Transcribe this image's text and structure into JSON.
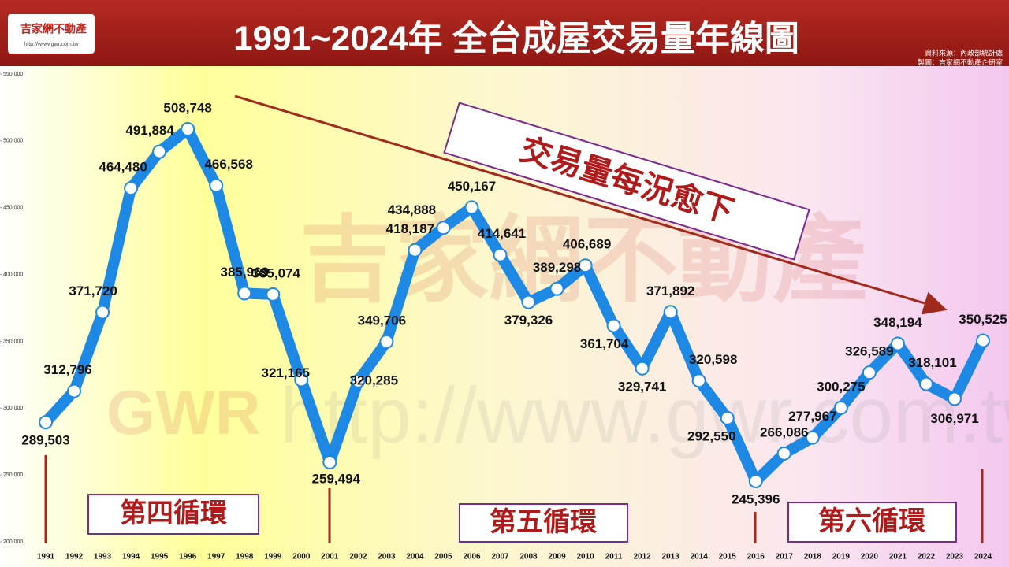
{
  "chart_data": {
    "type": "line",
    "title": "1991~2024年 全台成屋交易量年線圖",
    "source": [
      "資料來源：內政部統計處",
      "製圖：吉家網不動產企研室"
    ],
    "logo": {
      "name": "吉家網不動產",
      "url": "http://www.gwr.com.tw"
    },
    "watermark": {
      "name": "吉家網不動產",
      "brand": "GWR",
      "url": "http://www.gwr.com.tw"
    },
    "trend_annotation": "交易量每況愈下",
    "cycle_labels": [
      "第四循環",
      "第五循環",
      "第六循環"
    ],
    "categories": [
      "1991",
      "1992",
      "1993",
      "1994",
      "1995",
      "1996",
      "1997",
      "1998",
      "1999",
      "2000",
      "2001",
      "2002",
      "2003",
      "2004",
      "2005",
      "2006",
      "2007",
      "2008",
      "2009",
      "2010",
      "2011",
      "2012",
      "2013",
      "2014",
      "2015",
      "2016",
      "2017",
      "2018",
      "2019",
      "2020",
      "2021",
      "2022",
      "2023",
      "2024"
    ],
    "values": [
      289503,
      312796,
      371720,
      464480,
      491884,
      508748,
      466568,
      385969,
      385074,
      321165,
      259494,
      320285,
      349706,
      418187,
      434888,
      450167,
      414641,
      379326,
      389298,
      406689,
      361704,
      329741,
      371892,
      320598,
      292550,
      245396,
      266086,
      277967,
      300275,
      326589,
      348194,
      318101,
      306971,
      350525
    ],
    "value_labels": [
      "289,503",
      "312,796",
      "371,720",
      "464,480",
      "491,884",
      "508,748",
      "466,568",
      "385,969",
      "385,074",
      "321,165",
      "259,494",
      "320,285",
      "349,706",
      "418,187",
      "434,888",
      "450,167",
      "414,641",
      "379,326",
      "389,298",
      "406,689",
      "361,704",
      "329,741",
      "371,892",
      "320,598",
      "292,550",
      "245,396",
      "266,086",
      "277,967",
      "300,275",
      "326,589",
      "348,194",
      "318,101",
      "306,971",
      "350,525"
    ],
    "color": "#1e88e5",
    "ylim": [
      200000,
      550000
    ],
    "yticks": [
      {
        "value": 200000,
        "label": "200,000"
      },
      {
        "value": 250000,
        "label": "250,000"
      },
      {
        "value": 300000,
        "label": "300,000"
      },
      {
        "value": 350000,
        "label": "350,000"
      },
      {
        "value": 400000,
        "label": "400,000"
      },
      {
        "value": 450000,
        "label": "450,000"
      },
      {
        "value": 500000,
        "label": "500,000"
      },
      {
        "value": 550000,
        "label": "550,000"
      }
    ],
    "grid": false
  }
}
